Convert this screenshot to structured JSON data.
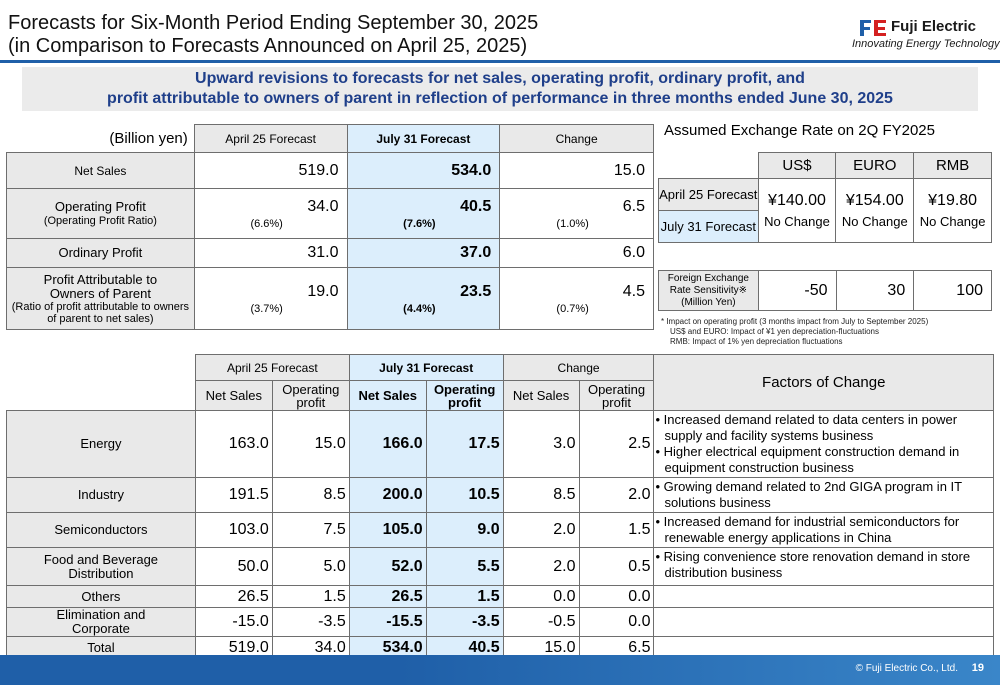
{
  "header": {
    "title_line1": "Forecasts for Six-Month Period Ending September 30, 2025",
    "title_line2": "(in Comparison to Forecasts Announced on April 25, 2025)",
    "logo_name": "Fuji Electric",
    "logo_tagline": "Innovating Energy Technology"
  },
  "banner": {
    "line1": "Upward revisions to forecasts for net sales, operating profit, ordinary profit, and",
    "line2": "profit attributable to owners of parent in reflection of performance in three months ended June 30, 2025"
  },
  "summary": {
    "unit": "(Billion yen)",
    "columns": [
      "April 25 Forecast",
      "July 31 Forecast",
      "Change"
    ],
    "rows": [
      {
        "label": "Net Sales",
        "apr": "519.0",
        "jul": "534.0",
        "chg": "15.0"
      },
      {
        "label": "Operating Profit",
        "sublabel": "(Operating Profit Ratio)",
        "apr": "34.0",
        "apr_sub": "(6.6%)",
        "jul": "40.5",
        "jul_sub": "(7.6%)",
        "chg": "6.5",
        "chg_sub": "(1.0%)"
      },
      {
        "label": "Ordinary Profit",
        "apr": "31.0",
        "jul": "37.0",
        "chg": "6.0"
      },
      {
        "label": "Profit Attributable to Owners of Parent",
        "sublabel": "(Ratio of profit attributable to owners of parent to net sales)",
        "apr": "19.0",
        "apr_sub": "(3.7%)",
        "jul": "23.5",
        "jul_sub": "(4.4%)",
        "chg": "4.5",
        "chg_sub": "(0.7%)"
      }
    ]
  },
  "exchange": {
    "title": "Assumed Exchange Rate on 2Q FY2025",
    "currencies": [
      "US$",
      "EURO",
      "RMB"
    ],
    "row_apr": "April 25 Forecast",
    "row_jul": "July 31 Forecast",
    "rates": [
      "¥140.00",
      "¥154.00",
      "¥19.80"
    ],
    "changes": [
      "No Change",
      "No Change",
      "No Change"
    ],
    "sensitivity_label": "Foreign Exchange Rate Sensitivity※ (Million Yen)",
    "sensitivity": [
      "-50",
      "30",
      "100"
    ],
    "notes": [
      "* Impact on operating profit (3 months impact from July to September 2025)",
      "US$ and EURO: Impact of ¥1 yen depreciation-fluctuations",
      "RMB: Impact of 1% yen depreciation fluctuations"
    ]
  },
  "segments": {
    "group_headers": [
      "April 25 Forecast",
      "July 31 Forecast",
      "Change"
    ],
    "sub_headers": [
      "Net Sales",
      "Operating profit"
    ],
    "factors_header": "Factors of Change",
    "rows": [
      {
        "label": "Energy",
        "v": [
          "163.0",
          "15.0",
          "166.0",
          "17.5",
          "3.0",
          "2.5"
        ],
        "factors": [
          "Increased demand related to data centers in power supply and facility systems business",
          "Higher electrical equipment construction demand in equipment construction business"
        ]
      },
      {
        "label": "Industry",
        "v": [
          "191.5",
          "8.5",
          "200.0",
          "10.5",
          "8.5",
          "2.0"
        ],
        "factors": [
          "Growing demand related to 2nd GIGA program in IT solutions business"
        ]
      },
      {
        "label": "Semiconductors",
        "v": [
          "103.0",
          "7.5",
          "105.0",
          "9.0",
          "2.0",
          "1.5"
        ],
        "factors": [
          "Increased demand for industrial semiconductors for renewable energy applications in China"
        ]
      },
      {
        "label": "Food and Beverage Distribution",
        "v": [
          "50.0",
          "5.0",
          "52.0",
          "5.5",
          "2.0",
          "0.5"
        ],
        "factors": [
          "Rising convenience store renovation demand in store distribution business"
        ]
      },
      {
        "label": "Others",
        "v": [
          "26.5",
          "1.5",
          "26.5",
          "1.5",
          "0.0",
          "0.0"
        ],
        "factors": []
      },
      {
        "label": "Elimination and Corporate",
        "v": [
          "-15.0",
          "-3.5",
          "-15.5",
          "-3.5",
          "-0.5",
          "0.0"
        ],
        "factors": []
      },
      {
        "label": "Total",
        "v": [
          "519.0",
          "34.0",
          "534.0",
          "40.5",
          "15.0",
          "6.5"
        ],
        "factors": []
      }
    ]
  },
  "footer": {
    "copyright": "© Fuji Electric Co., Ltd.",
    "page": "19"
  },
  "colors": {
    "accent": "#1f5fa8",
    "highlight": "#dceefc",
    "header_gray": "#e9e9e9",
    "banner_text": "#1f3f8a"
  }
}
